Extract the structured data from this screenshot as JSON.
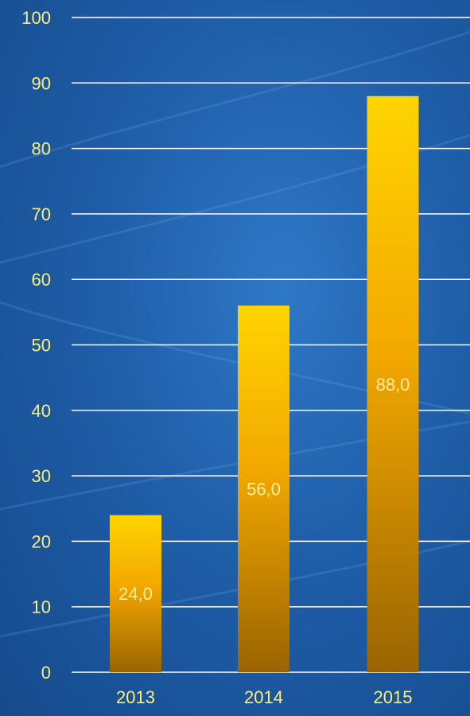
{
  "chart_data": {
    "type": "bar",
    "title": "",
    "xlabel": "",
    "ylabel": "",
    "categories": [
      "2013",
      "2014",
      "2015"
    ],
    "values": [
      24.0,
      56.0,
      88.0
    ],
    "data_labels": [
      "24,0",
      "56,0",
      "88,0"
    ],
    "ylim": [
      0,
      100
    ],
    "yticks": [
      0,
      10,
      20,
      30,
      40,
      50,
      60,
      70,
      80,
      90,
      100
    ],
    "grid": true,
    "legend": "none"
  },
  "colors": {
    "background": "#1f5ea9",
    "bar_top": "#ffd400",
    "bar_middle": "#f2a800",
    "bar_bottom": "#9a6400",
    "gridline": "#ffffff",
    "tick_text": "#ffef7a",
    "data_label_text": "#fff0a0"
  }
}
